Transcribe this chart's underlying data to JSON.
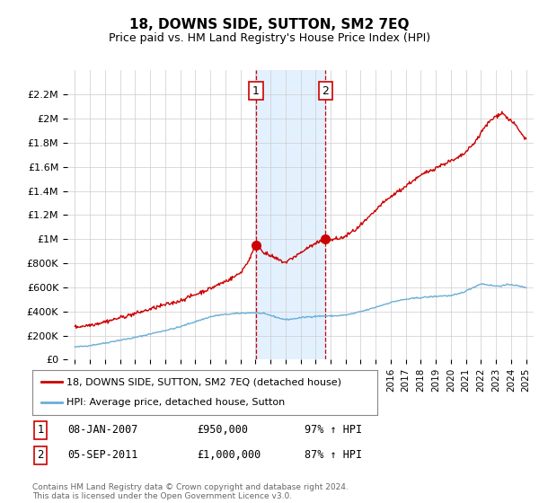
{
  "title": "18, DOWNS SIDE, SUTTON, SM2 7EQ",
  "subtitle": "Price paid vs. HM Land Registry's House Price Index (HPI)",
  "ylabel_ticks": [
    "£0",
    "£200K",
    "£400K",
    "£600K",
    "£800K",
    "£1M",
    "£1.2M",
    "£1.4M",
    "£1.6M",
    "£1.8M",
    "£2M",
    "£2.2M"
  ],
  "ylim": [
    0,
    2400000
  ],
  "xlim_start": 1994.5,
  "xlim_end": 2025.5,
  "hpi_color": "#6baed6",
  "price_color": "#cc0000",
  "marker_color": "#cc0000",
  "sale1_x": 2007.04,
  "sale1_y": 950000,
  "sale1_label": "1",
  "sale2_x": 2011.67,
  "sale2_y": 1000000,
  "sale2_label": "2",
  "shade_x1": 2007.04,
  "shade_x2": 2011.67,
  "legend_line1": "18, DOWNS SIDE, SUTTON, SM2 7EQ (detached house)",
  "legend_line2": "HPI: Average price, detached house, Sutton",
  "table_row1": [
    "1",
    "08-JAN-2007",
    "£950,000",
    "97% ↑ HPI"
  ],
  "table_row2": [
    "2",
    "05-SEP-2011",
    "£1,000,000",
    "87% ↑ HPI"
  ],
  "footnote": "Contains HM Land Registry data © Crown copyright and database right 2024.\nThis data is licensed under the Open Government Licence v3.0.",
  "background_color": "#ffffff",
  "grid_color": "#cccccc",
  "hpi_data_x": [
    1995.0,
    1995.5,
    1996.0,
    1996.5,
    1997.0,
    1997.5,
    1998.0,
    1998.5,
    1999.0,
    1999.5,
    2000.0,
    2000.5,
    2001.0,
    2001.5,
    2002.0,
    2002.5,
    2003.0,
    2003.5,
    2004.0,
    2004.5,
    2005.0,
    2005.5,
    2006.0,
    2006.5,
    2007.0,
    2007.5,
    2008.0,
    2008.5,
    2009.0,
    2009.5,
    2010.0,
    2010.5,
    2011.0,
    2011.5,
    2012.0,
    2012.5,
    2013.0,
    2013.5,
    2014.0,
    2014.5,
    2015.0,
    2015.5,
    2016.0,
    2016.5,
    2017.0,
    2017.5,
    2018.0,
    2018.5,
    2019.0,
    2019.5,
    2020.0,
    2020.5,
    2021.0,
    2021.5,
    2022.0,
    2022.5,
    2023.0,
    2023.5,
    2024.0,
    2024.5,
    2025.0
  ],
  "hpi_data_y": [
    105000,
    110000,
    118000,
    128000,
    138000,
    150000,
    162000,
    172000,
    183000,
    198000,
    213000,
    228000,
    242000,
    256000,
    272000,
    295000,
    315000,
    335000,
    355000,
    368000,
    375000,
    380000,
    385000,
    388000,
    390000,
    382000,
    368000,
    348000,
    332000,
    338000,
    348000,
    355000,
    360000,
    362000,
    362000,
    365000,
    370000,
    382000,
    398000,
    415000,
    435000,
    455000,
    475000,
    490000,
    500000,
    508000,
    515000,
    520000,
    525000,
    530000,
    530000,
    545000,
    570000,
    600000,
    630000,
    620000,
    610000,
    615000,
    625000,
    610000,
    600000
  ],
  "price_data_x": [
    1995.0,
    1995.5,
    1996.0,
    1996.5,
    1997.0,
    1997.5,
    1998.0,
    1998.5,
    1999.0,
    1999.5,
    2000.0,
    2000.5,
    2001.0,
    2001.5,
    2002.0,
    2002.5,
    2003.0,
    2003.5,
    2004.0,
    2004.5,
    2005.0,
    2005.5,
    2006.0,
    2006.5,
    2007.04,
    2007.3,
    2007.6,
    2008.0,
    2008.5,
    2009.0,
    2009.3,
    2009.6,
    2010.0,
    2010.5,
    2011.0,
    2011.67,
    2011.9,
    2012.3,
    2012.8,
    2013.3,
    2013.8,
    2014.3,
    2014.8,
    2015.3,
    2015.8,
    2016.3,
    2016.8,
    2017.3,
    2017.8,
    2018.3,
    2018.8,
    2019.3,
    2019.8,
    2020.3,
    2020.8,
    2021.3,
    2021.8,
    2022.2,
    2022.6,
    2023.0,
    2023.4,
    2023.8,
    2024.1,
    2024.4,
    2024.7,
    2025.0
  ],
  "price_data_y": [
    270000,
    278000,
    288000,
    300000,
    315000,
    330000,
    348000,
    365000,
    382000,
    400000,
    418000,
    438000,
    455000,
    470000,
    490000,
    515000,
    540000,
    565000,
    590000,
    620000,
    650000,
    680000,
    720000,
    810000,
    950000,
    930000,
    885000,
    860000,
    830000,
    805000,
    830000,
    855000,
    885000,
    930000,
    960000,
    1000000,
    990000,
    1000000,
    1010000,
    1050000,
    1090000,
    1150000,
    1210000,
    1280000,
    1330000,
    1380000,
    1420000,
    1470000,
    1510000,
    1550000,
    1580000,
    1610000,
    1640000,
    1660000,
    1700000,
    1760000,
    1840000,
    1920000,
    1980000,
    2020000,
    2050000,
    2000000,
    1970000,
    1930000,
    1870000,
    1830000
  ]
}
